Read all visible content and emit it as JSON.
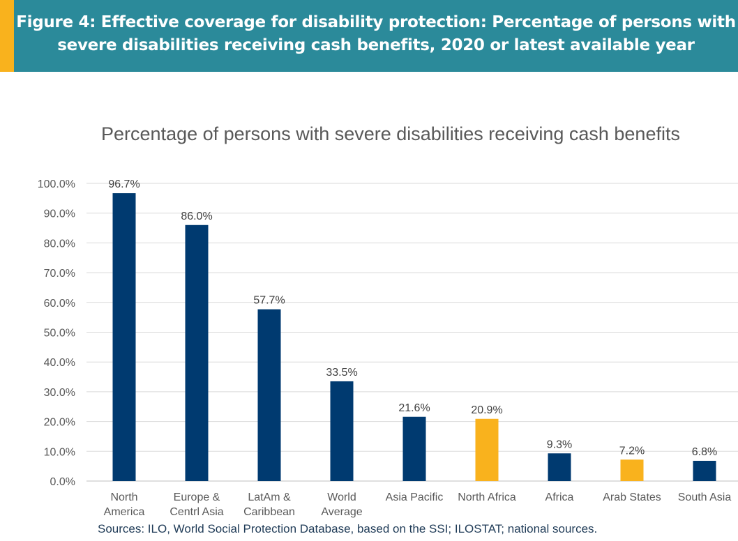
{
  "banner": {
    "title": "Figure 4: Effective coverage for disability protection: Percentage of persons with severe disabilities receiving cash benefits, 2020 or latest available year",
    "accent_color": "#f9b21d",
    "background_color": "#2b8a9a"
  },
  "chart_data": {
    "type": "bar",
    "title": "Percentage of persons with severe disabilities receiving cash benefits",
    "categories": [
      [
        "North",
        "America"
      ],
      [
        "Europe &",
        "Centrl Asia"
      ],
      [
        "LatAm &",
        "Caribbean"
      ],
      [
        "World",
        "Average"
      ],
      [
        "Asia Pacific"
      ],
      [
        "North Africa"
      ],
      [
        "Africa"
      ],
      [
        "Arab States"
      ],
      [
        "South Asia"
      ]
    ],
    "values": [
      96.7,
      86.0,
      57.7,
      33.5,
      21.6,
      20.9,
      9.3,
      7.2,
      6.8
    ],
    "data_labels": [
      "96.7%",
      "86.0%",
      "57.7%",
      "33.5%",
      "21.6%",
      "20.9%",
      "9.3%",
      "7.2%",
      "6.8%"
    ],
    "bar_colors": [
      "#003a70",
      "#003a70",
      "#003a70",
      "#003a70",
      "#003a70",
      "#f9b21d",
      "#003a70",
      "#f9b21d",
      "#003a70"
    ],
    "ylim": [
      0,
      100
    ],
    "yticks": [
      0,
      10,
      20,
      30,
      40,
      50,
      60,
      70,
      80,
      90,
      100
    ],
    "ytick_labels": [
      "0.0%",
      "10.0%",
      "20.0%",
      "30.0%",
      "40.0%",
      "50.0%",
      "60.0%",
      "70.0%",
      "80.0%",
      "90.0%",
      "100.0%"
    ],
    "grid": true,
    "xlabel": "",
    "ylabel": ""
  },
  "source": "Sources: ILO, World Social Protection Database, based on the SSI; ILOSTAT; national sources."
}
